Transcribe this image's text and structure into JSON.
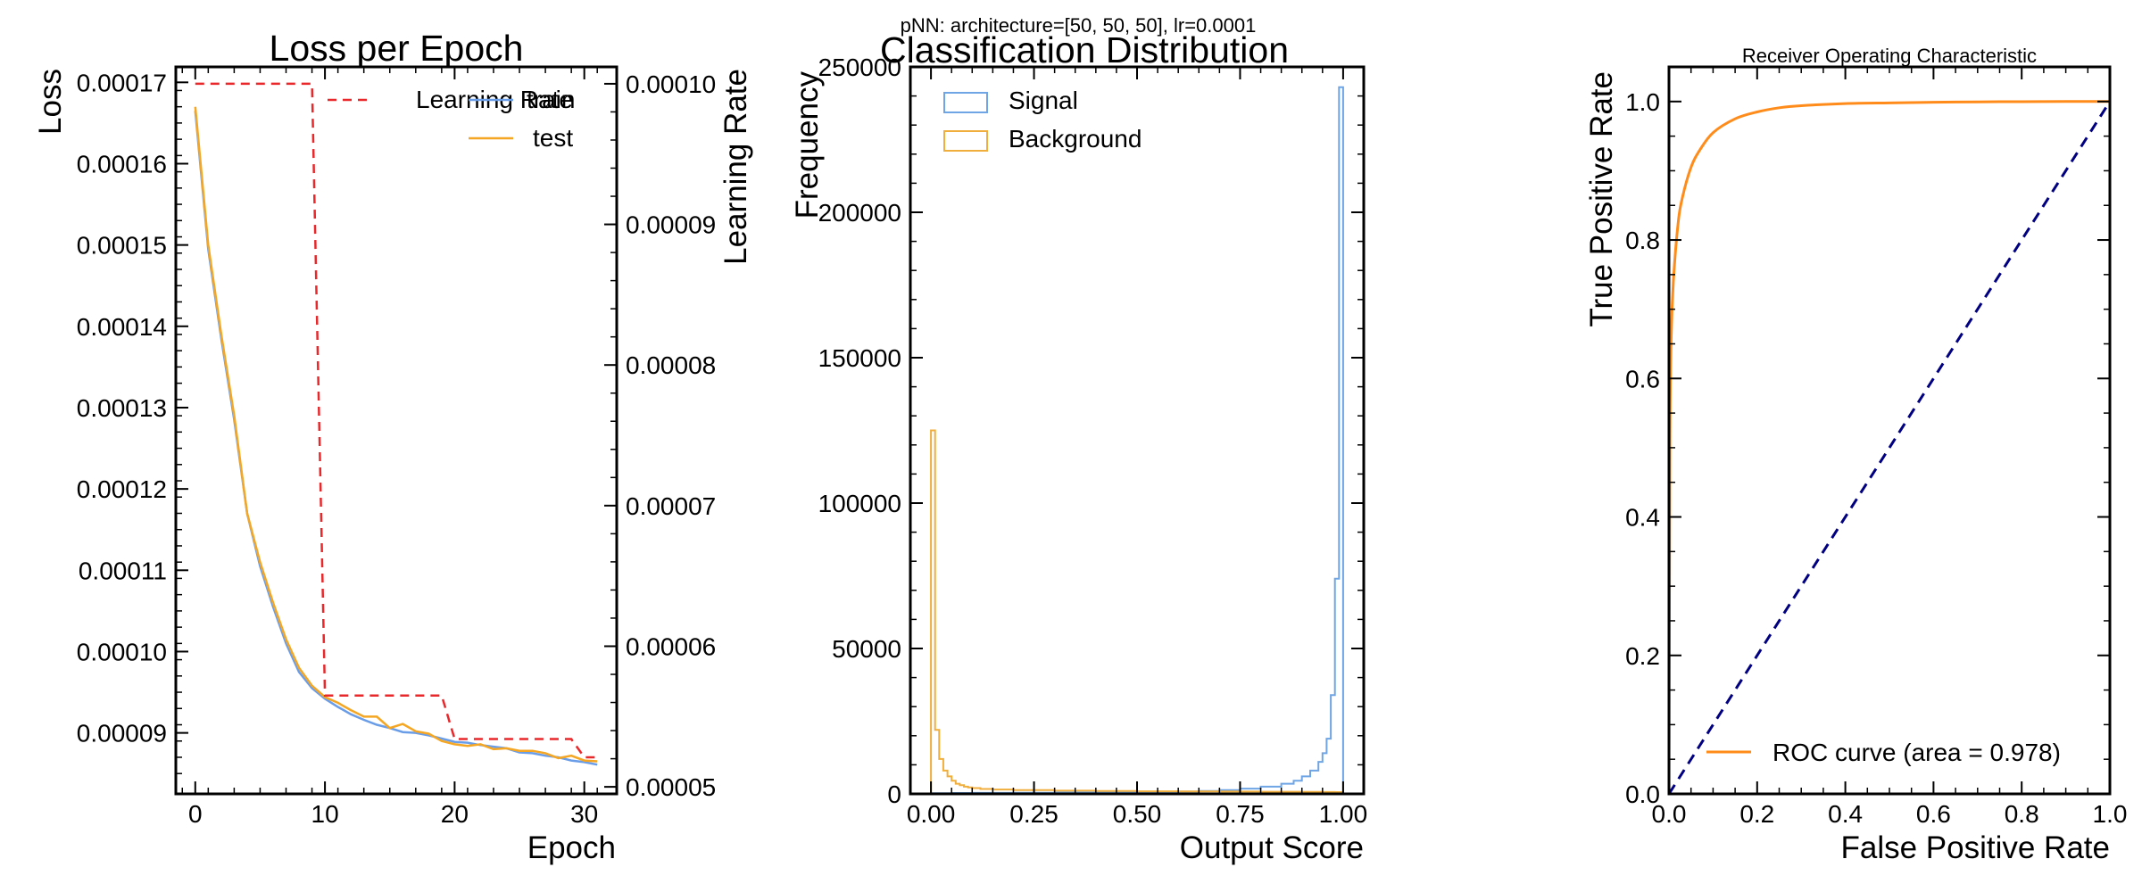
{
  "suptitle": "pNN: architecture=[50, 50, 50], lr=0.0001",
  "colors": {
    "train": "#6a9de8",
    "test": "#f5a623",
    "lr": "#e8282b",
    "roc": "#ff8c1a",
    "diag": "#000080",
    "signal": "#6fa5e5",
    "background": "#f0ae3c"
  },
  "chart_data": [
    {
      "type": "line",
      "title": "Loss per Epoch",
      "xlabel": "Epoch",
      "ylabel": "Loss",
      "y2label": "Learning Rate",
      "xlim": [
        -1.5,
        32.5
      ],
      "ylim": [
        8.25e-05,
        0.0001719
      ],
      "y2lim": [
        4.95e-05,
        0.0001012
      ],
      "xticks": [
        0,
        10,
        20,
        30
      ],
      "yticks": [
        9e-05,
        0.0001,
        0.00011,
        0.00012,
        0.00013,
        0.00014,
        0.00015,
        0.00016,
        0.00017
      ],
      "ytick_labels": [
        "0.00009",
        "0.00010",
        "0.00011",
        "0.00012",
        "0.00013",
        "0.00014",
        "0.00015",
        "0.00016",
        "0.00017"
      ],
      "y2ticks": [
        5e-05,
        6e-05,
        7e-05,
        8e-05,
        9e-05,
        0.0001
      ],
      "y2tick_labels": [
        "0.00005",
        "0.00006",
        "0.00007",
        "0.00008",
        "0.00009",
        "0.00010"
      ],
      "legend_position": "top-right",
      "legend": [
        {
          "label": "Learning Rate",
          "style": "dashed",
          "color_key": "lr",
          "ox": -30,
          "oy": 0
        },
        {
          "label": "train",
          "style": "solid",
          "color_key": "train",
          "ox": 0,
          "oy": 0
        },
        {
          "label": "test",
          "style": "solid",
          "color_key": "test",
          "ox": 0,
          "oy": 43
        }
      ],
      "x": [
        0,
        1,
        2,
        3,
        4,
        5,
        6,
        7,
        8,
        9,
        10,
        11,
        12,
        13,
        14,
        15,
        16,
        17,
        18,
        19,
        20,
        21,
        22,
        23,
        24,
        25,
        26,
        27,
        28,
        29,
        30,
        31
      ],
      "series": [
        {
          "name": "train",
          "axis": "left",
          "color_key": "train",
          "dash": "",
          "values": [
            0.0001665,
            0.0001495,
            0.0001385,
            0.0001285,
            0.000117,
            0.0001105,
            0.0001055,
            0.000101,
            9.75e-05,
            9.55e-05,
            9.42e-05,
            9.32e-05,
            9.23e-05,
            9.16e-05,
            9.1e-05,
            9.06e-05,
            9.01e-05,
            9e-05,
            8.97e-05,
            8.93e-05,
            8.89e-05,
            8.88e-05,
            8.85e-05,
            8.83e-05,
            8.81e-05,
            8.76e-05,
            8.75e-05,
            8.72e-05,
            8.7e-05,
            8.66e-05,
            8.64e-05,
            8.61e-05
          ]
        },
        {
          "name": "test",
          "axis": "left",
          "color_key": "test",
          "dash": "",
          "values": [
            0.000167,
            0.00015,
            0.000139,
            0.000129,
            0.000117,
            0.000111,
            0.000106,
            0.0001015,
            9.8e-05,
            9.58e-05,
            9.44e-05,
            9.37e-05,
            9.28e-05,
            9.2e-05,
            9.2e-05,
            9.06e-05,
            9.11e-05,
            9.02e-05,
            8.99e-05,
            8.9e-05,
            8.86e-05,
            8.84e-05,
            8.86e-05,
            8.8e-05,
            8.81e-05,
            8.78e-05,
            8.78e-05,
            8.75e-05,
            8.69e-05,
            8.72e-05,
            8.66e-05,
            8.65e-05
          ]
        },
        {
          "name": "Learning Rate",
          "axis": "right",
          "color_key": "lr",
          "dash": "10,7",
          "values": [
            0.0001,
            0.0001,
            0.0001,
            0.0001,
            0.0001,
            0.0001,
            0.0001,
            0.0001,
            0.0001,
            0.0001,
            5.65e-05,
            5.65e-05,
            5.65e-05,
            5.65e-05,
            5.65e-05,
            5.65e-05,
            5.65e-05,
            5.65e-05,
            5.65e-05,
            5.65e-05,
            5.34e-05,
            5.34e-05,
            5.34e-05,
            5.34e-05,
            5.34e-05,
            5.34e-05,
            5.34e-05,
            5.34e-05,
            5.34e-05,
            5.34e-05,
            5.21e-05,
            5.21e-05
          ]
        }
      ]
    },
    {
      "type": "histogram",
      "title": "Classification Distribution",
      "xlabel": "Output Score",
      "ylabel": "Frequency",
      "xlim": [
        -0.05,
        1.05
      ],
      "ylim": [
        0,
        250000
      ],
      "xticks": [
        0,
        0.25,
        0.5,
        0.75,
        1.0
      ],
      "xtick_labels": [
        "0.00",
        "0.25",
        "0.50",
        "0.75",
        "1.00"
      ],
      "yticks": [
        0,
        50000,
        100000,
        150000,
        200000,
        250000
      ],
      "ytick_labels": [
        "0",
        "50000",
        "100000",
        "150000",
        "200000",
        "250000"
      ],
      "legend_position": "top-left",
      "bin_width": 0.01,
      "series": [
        {
          "name": "Signal",
          "color_key": "signal",
          "bins": [
            [
              0.0,
              200
            ],
            [
              0.05,
              300
            ],
            [
              0.1,
              350
            ],
            [
              0.2,
              400
            ],
            [
              0.3,
              450
            ],
            [
              0.4,
              500
            ],
            [
              0.5,
              600
            ],
            [
              0.6,
              800
            ],
            [
              0.65,
              1000
            ],
            [
              0.7,
              1300
            ],
            [
              0.75,
              1800
            ],
            [
              0.8,
              2500
            ],
            [
              0.85,
              3500
            ],
            [
              0.88,
              4500
            ],
            [
              0.9,
              6000
            ],
            [
              0.92,
              8000
            ],
            [
              0.94,
              11000
            ],
            [
              0.95,
              14000
            ],
            [
              0.96,
              19000
            ],
            [
              0.97,
              34000
            ],
            [
              0.98,
              74000
            ],
            [
              0.99,
              243000
            ],
            [
              1.0,
              0
            ]
          ]
        },
        {
          "name": "Background",
          "color_key": "background",
          "bins": [
            [
              0.0,
              125000
            ],
            [
              0.01,
              22000
            ],
            [
              0.02,
              12000
            ],
            [
              0.03,
              8000
            ],
            [
              0.04,
              6000
            ],
            [
              0.05,
              4500
            ],
            [
              0.06,
              3500
            ],
            [
              0.07,
              3000
            ],
            [
              0.08,
              2500
            ],
            [
              0.09,
              2200
            ],
            [
              0.1,
              2000
            ],
            [
              0.12,
              1700
            ],
            [
              0.15,
              1500
            ],
            [
              0.2,
              1300
            ],
            [
              0.3,
              1100
            ],
            [
              0.4,
              1000
            ],
            [
              0.5,
              900
            ],
            [
              0.6,
              850
            ],
            [
              0.7,
              800
            ],
            [
              0.8,
              750
            ],
            [
              0.9,
              700
            ],
            [
              0.95,
              650
            ],
            [
              0.98,
              600
            ],
            [
              1.0,
              0
            ]
          ]
        }
      ]
    },
    {
      "type": "line",
      "title": "Receiver Operating Characteristic",
      "xlabel": "False Positive Rate",
      "ylabel": "True Positive Rate",
      "xlim": [
        0.0,
        1.0
      ],
      "ylim": [
        0.0,
        1.05
      ],
      "xticks": [
        0.0,
        0.2,
        0.4,
        0.6,
        0.8,
        1.0
      ],
      "xtick_labels": [
        "0.0",
        "0.2",
        "0.4",
        "0.6",
        "0.8",
        "1.0"
      ],
      "yticks": [
        0.0,
        0.2,
        0.4,
        0.6,
        0.8,
        1.0
      ],
      "ytick_labels": [
        "0.0",
        "0.2",
        "0.4",
        "0.6",
        "0.8",
        "1.0"
      ],
      "legend_position": "lower-center",
      "legend": [
        {
          "label": "ROC curve (area = 0.978)",
          "style": "solid",
          "color_key": "roc"
        }
      ],
      "series": [
        {
          "name": "ROC curve (area = 0.978)",
          "color_key": "roc",
          "dash": "",
          "x": [
            0,
            0.002,
            0.005,
            0.01,
            0.02,
            0.03,
            0.05,
            0.07,
            0.1,
            0.15,
            0.2,
            0.25,
            0.3,
            0.4,
            0.5,
            0.6,
            0.7,
            0.8,
            0.9,
            1.0
          ],
          "y": [
            0,
            0.5,
            0.66,
            0.74,
            0.82,
            0.86,
            0.905,
            0.93,
            0.955,
            0.975,
            0.985,
            0.991,
            0.994,
            0.997,
            0.998,
            0.999,
            0.9995,
            0.9998,
            1.0,
            1.0
          ]
        },
        {
          "color_key": "diag",
          "dash": "12,8",
          "x": [
            0,
            1
          ],
          "y": [
            0,
            1
          ]
        }
      ]
    }
  ]
}
